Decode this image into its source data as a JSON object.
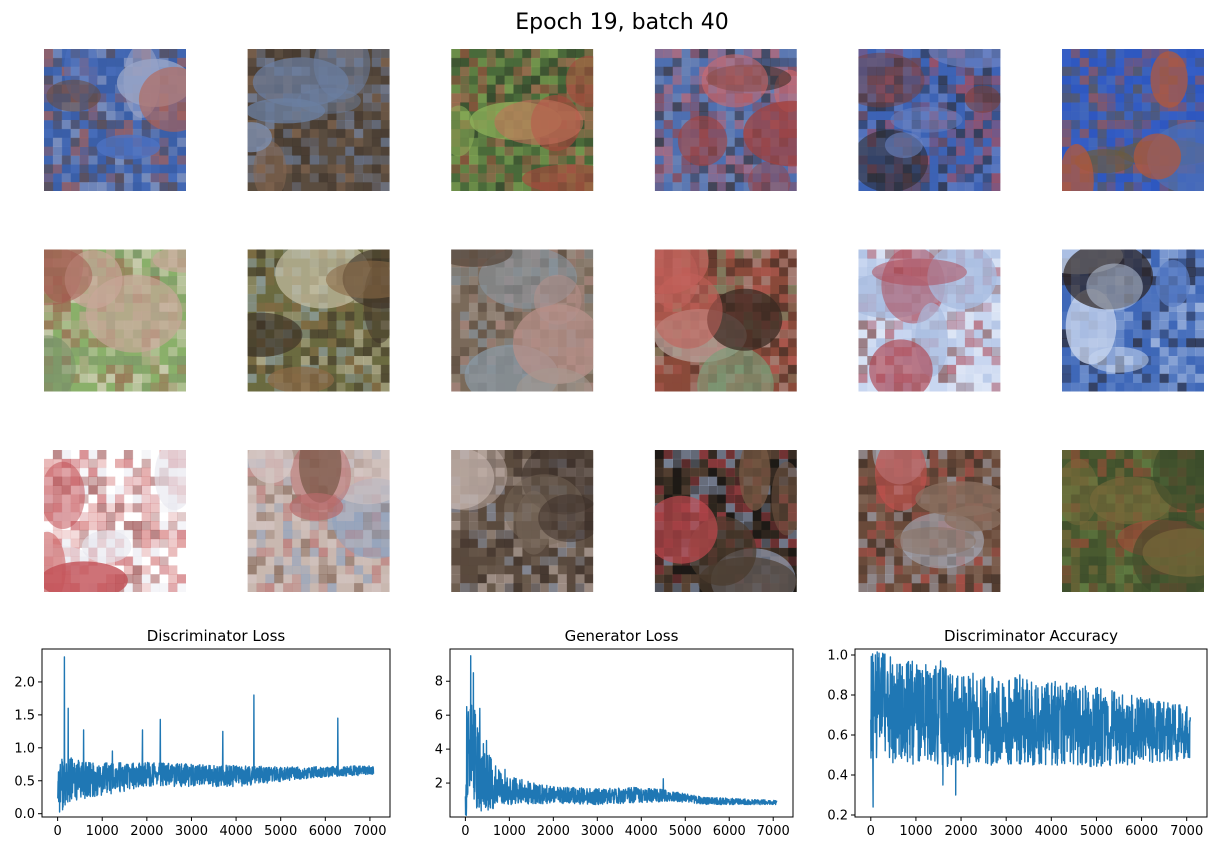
{
  "figure": {
    "suptitle": "Epoch 19, batch 40"
  },
  "sample_grid": {
    "rows": 3,
    "cols": 6,
    "images": [
      {
        "name": "sample-1",
        "palette": [
          "#3b5fa8",
          "#6a4a3a",
          "#9aa6c8",
          "#b8624f",
          "#4d73c2"
        ]
      },
      {
        "name": "sample-2",
        "palette": [
          "#5a4c3f",
          "#7d8fb0",
          "#3e332b",
          "#8a6a52",
          "#6b7fa2"
        ]
      },
      {
        "name": "sample-3",
        "palette": [
          "#4a6a3a",
          "#a34a3c",
          "#2e3a28",
          "#8fb35a",
          "#c26e5a"
        ]
      },
      {
        "name": "sample-4",
        "palette": [
          "#4f6fb0",
          "#a0423f",
          "#3a2c26",
          "#d66a6a",
          "#7a8fb8"
        ]
      },
      {
        "name": "sample-5",
        "palette": [
          "#3d63b5",
          "#7a3f38",
          "#6f86c4",
          "#c24a47",
          "#2c2622"
        ]
      },
      {
        "name": "sample-6",
        "palette": [
          "#2f58c0",
          "#4c6fb8",
          "#6a5a40",
          "#b0583e",
          "#3a62c8"
        ]
      },
      {
        "name": "sample-7",
        "palette": [
          "#8ab06a",
          "#c9a79a",
          "#a45a50",
          "#e6d8cc",
          "#7a8f6a"
        ]
      },
      {
        "name": "sample-8",
        "palette": [
          "#6b6b40",
          "#c9c3a8",
          "#3b3026",
          "#9ab0c0",
          "#8a6a45"
        ]
      },
      {
        "name": "sample-9",
        "palette": [
          "#7a6a5a",
          "#a79a90",
          "#5a4a3e",
          "#b8908a",
          "#8a9aa6"
        ]
      },
      {
        "name": "sample-10",
        "palette": [
          "#8a4a3a",
          "#3a2a22",
          "#c2605a",
          "#7aa07a",
          "#b8a09a"
        ]
      },
      {
        "name": "sample-11",
        "palette": [
          "#c8d6f0",
          "#e8eef8",
          "#7a3f3a",
          "#b04a55",
          "#a8bce0"
        ]
      },
      {
        "name": "sample-12",
        "palette": [
          "#3f68b8",
          "#8aa6d8",
          "#2a1e18",
          "#c8d6ee",
          "#5a7ec4"
        ]
      },
      {
        "name": "sample-13",
        "palette": [
          "#ffffff",
          "#c24f55",
          "#8a2f30",
          "#e6e6ee",
          "#d27070"
        ]
      },
      {
        "name": "sample-14",
        "palette": [
          "#c9b8b0",
          "#b86a6a",
          "#8aa0c0",
          "#7a5a4a",
          "#d6c8c6"
        ]
      },
      {
        "name": "sample-15",
        "palette": [
          "#5a4a3e",
          "#9aa8c0",
          "#3a2e28",
          "#c8b8b0",
          "#7a6a5c"
        ]
      },
      {
        "name": "sample-16",
        "palette": [
          "#1e1a16",
          "#7a5a45",
          "#a8b8d8",
          "#c24a50",
          "#4a3a2c"
        ]
      },
      {
        "name": "sample-17",
        "palette": [
          "#6a4a3a",
          "#a8b0c0",
          "#c2524e",
          "#3a2e26",
          "#8a7060"
        ]
      },
      {
        "name": "sample-18",
        "palette": [
          "#4a5a30",
          "#7a6a3a",
          "#6a8a4a",
          "#a04a38",
          "#3a4a2a"
        ]
      }
    ]
  },
  "chart_data": [
    {
      "type": "line",
      "title": "Discriminator Loss",
      "xlabel": "",
      "ylabel": "",
      "xlim": [
        -350,
        7450
      ],
      "ylim": [
        -0.05,
        2.5
      ],
      "xticks": [
        0,
        1000,
        2000,
        3000,
        4000,
        5000,
        6000,
        7000
      ],
      "xtick_labels": [
        "0",
        "1000",
        "2000",
        "3000",
        "4000",
        "5000",
        "6000",
        "7000"
      ],
      "yticks": [
        0.0,
        0.5,
        1.0,
        1.5,
        2.0
      ],
      "ytick_labels": [
        "0.0",
        "0.5",
        "1.0",
        "1.5",
        "2.0"
      ],
      "grid": false,
      "color": "#1f77b4",
      "x_range": [
        0,
        7080
      ],
      "trend": [
        [
          0,
          0.45
        ],
        [
          300,
          0.5
        ],
        [
          1000,
          0.52
        ],
        [
          2000,
          0.6
        ],
        [
          3000,
          0.58
        ],
        [
          4000,
          0.57
        ],
        [
          5000,
          0.6
        ],
        [
          6000,
          0.64
        ],
        [
          7080,
          0.66
        ]
      ],
      "amplitude": [
        [
          0,
          0.45
        ],
        [
          500,
          0.3
        ],
        [
          2000,
          0.18
        ],
        [
          4000,
          0.16
        ],
        [
          5500,
          0.09
        ],
        [
          7080,
          0.07
        ]
      ],
      "spikes": [
        [
          150,
          2.38
        ],
        [
          240,
          1.6
        ],
        [
          580,
          1.27
        ],
        [
          1230,
          0.95
        ],
        [
          1900,
          1.27
        ],
        [
          2300,
          1.43
        ],
        [
          3700,
          1.25
        ],
        [
          4400,
          1.8
        ],
        [
          6280,
          1.45
        ]
      ]
    },
    {
      "type": "line",
      "title": "Generator Loss",
      "xlabel": "",
      "ylabel": "",
      "xlim": [
        -350,
        7450
      ],
      "ylim": [
        0.0,
        9.9
      ],
      "xticks": [
        0,
        1000,
        2000,
        3000,
        4000,
        5000,
        6000,
        7000
      ],
      "xtick_labels": [
        "0",
        "1000",
        "2000",
        "3000",
        "4000",
        "5000",
        "6000",
        "7000"
      ],
      "yticks": [
        2,
        4,
        6,
        8
      ],
      "ytick_labels": [
        "2",
        "4",
        "6",
        "8"
      ],
      "grid": false,
      "color": "#1f77b4",
      "x_range": [
        0,
        7080
      ],
      "trend": [
        [
          0,
          2.5
        ],
        [
          100,
          4.5
        ],
        [
          300,
          2.8
        ],
        [
          600,
          1.9
        ],
        [
          1000,
          1.55
        ],
        [
          2000,
          1.3
        ],
        [
          3000,
          1.2
        ],
        [
          4000,
          1.3
        ],
        [
          4600,
          1.25
        ],
        [
          5500,
          0.95
        ],
        [
          7080,
          0.85
        ]
      ],
      "amplitude": [
        [
          0,
          3.5
        ],
        [
          300,
          2.5
        ],
        [
          800,
          0.9
        ],
        [
          2000,
          0.5
        ],
        [
          4000,
          0.45
        ],
        [
          5000,
          0.25
        ],
        [
          7080,
          0.12
        ]
      ],
      "spikes": [
        [
          120,
          9.5
        ],
        [
          180,
          8.5
        ],
        [
          330,
          6.4
        ],
        [
          480,
          4.5
        ],
        [
          900,
          2.8
        ],
        [
          4500,
          2.25
        ]
      ]
    },
    {
      "type": "line",
      "title": "Discriminator Accuracy",
      "xlabel": "",
      "ylabel": "",
      "xlim": [
        -350,
        7450
      ],
      "ylim": [
        0.19,
        1.03
      ],
      "xticks": [
        0,
        1000,
        2000,
        3000,
        4000,
        5000,
        6000,
        7000
      ],
      "xtick_labels": [
        "0",
        "1000",
        "2000",
        "3000",
        "4000",
        "5000",
        "6000",
        "7000"
      ],
      "yticks": [
        0.2,
        0.4,
        0.6,
        0.8,
        1.0
      ],
      "ytick_labels": [
        "0.2",
        "0.4",
        "0.6",
        "0.8",
        "1.0"
      ],
      "grid": false,
      "color": "#1f77b4",
      "x_range": [
        0,
        7080
      ],
      "trend": [
        [
          0,
          0.75
        ],
        [
          500,
          0.72
        ],
        [
          2000,
          0.68
        ],
        [
          4000,
          0.66
        ],
        [
          5500,
          0.63
        ],
        [
          7080,
          0.61
        ]
      ],
      "amplitude": [
        [
          0,
          0.28
        ],
        [
          1000,
          0.26
        ],
        [
          3000,
          0.22
        ],
        [
          5000,
          0.2
        ],
        [
          7080,
          0.13
        ]
      ],
      "spikes": [
        [
          50,
          0.24
        ],
        [
          100,
          1.0
        ],
        [
          300,
          1.0
        ],
        [
          1550,
          0.97
        ],
        [
          1880,
          0.3
        ],
        [
          1600,
          0.35
        ],
        [
          3300,
          0.9
        ]
      ]
    }
  ]
}
